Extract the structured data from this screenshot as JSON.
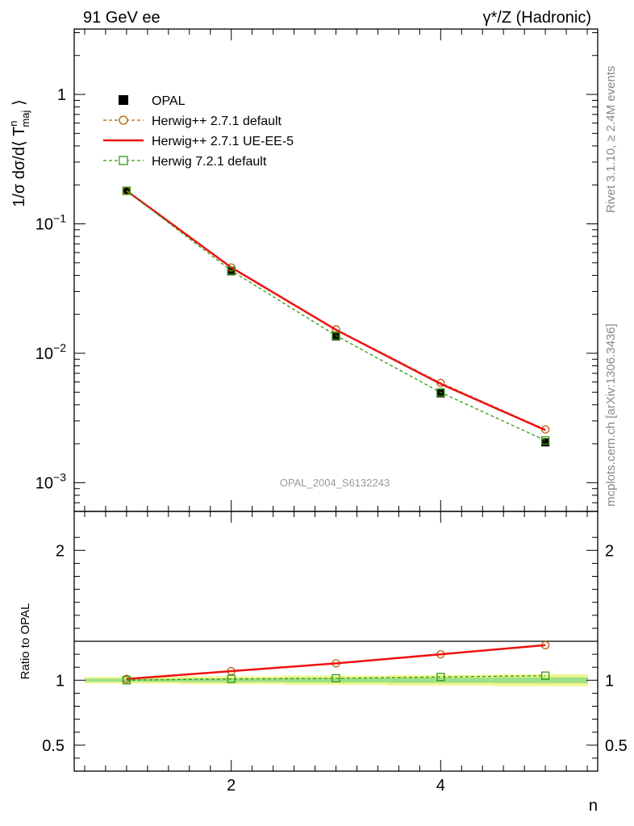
{
  "header": {
    "left_title": "91 GeV ee",
    "right_title": "γ*/Z (Hadronic)"
  },
  "side_text": {
    "rivet": "Rivet 3.1.10, ≥ 2.4M events",
    "mcplots": "mcplots.cern.ch [arXiv:1306.3436]"
  },
  "chart_data": [
    {
      "type": "line",
      "panel": "main",
      "yscale": "log",
      "title": "",
      "xlabel": "",
      "ylabel": "1/σ dσ/d⟨ T^n_maj ⟩",
      "xlim": [
        0.5,
        5.5
      ],
      "ylim": [
        0.0006,
        3.2
      ],
      "y_ticks": [
        {
          "value": 1,
          "label": "1"
        },
        {
          "value": 0.1,
          "label": "10^-1"
        },
        {
          "value": 0.01,
          "label": "10^-2"
        },
        {
          "value": 0.001,
          "label": "10^-3"
        }
      ],
      "watermark": "OPAL_2004_S6132243",
      "x": [
        1,
        2,
        3,
        4,
        5
      ],
      "series": [
        {
          "name": "OPAL",
          "style": "marker-square",
          "color": "#000000",
          "values": [
            0.18,
            0.043,
            0.0135,
            0.0049,
            0.00205
          ]
        },
        {
          "name": "Herwig++ 2.7.1 default",
          "style": "dashed-circle",
          "color": "#b35a00",
          "values": [
            0.18,
            0.046,
            0.0153,
            0.0059,
            0.00258
          ]
        },
        {
          "name": "Herwig++ 2.7.1 UE-EE-5",
          "style": "solid",
          "color": "#ee1111",
          "values": [
            0.18,
            0.046,
            0.0152,
            0.0058,
            0.00255
          ]
        },
        {
          "name": "Herwig 7.2.1 default",
          "style": "dashed-square",
          "color": "#339911",
          "values": [
            0.18,
            0.0435,
            0.0137,
            0.00498,
            0.00212
          ]
        }
      ]
    },
    {
      "type": "line",
      "panel": "ratio",
      "yscale": "linear",
      "xlabel": "n",
      "ylabel": "Ratio to OPAL",
      "xlim": [
        0.5,
        5.5
      ],
      "ylim": [
        0.3,
        2.3
      ],
      "x_ticks": [
        {
          "value": 2,
          "label": "2"
        },
        {
          "value": 4,
          "label": "4"
        }
      ],
      "y_ticks": [
        {
          "value": 2,
          "label": "2"
        },
        {
          "value": 1,
          "label": "1"
        },
        {
          "value": 0.5,
          "label": "0.5"
        }
      ],
      "x": [
        1,
        2,
        3,
        4,
        5
      ],
      "series": [
        {
          "name": "Herwig++ 2.7.1 default",
          "style": "dashed-circle",
          "color": "#b35a00",
          "values": [
            1.01,
            1.07,
            1.13,
            1.2,
            1.27
          ]
        },
        {
          "name": "Herwig++ 2.7.1 UE-EE-5",
          "style": "solid",
          "color": "#ee1111",
          "values": [
            1.01,
            1.07,
            1.13,
            1.2,
            1.27
          ]
        },
        {
          "name": "Herwig 7.2.1 default",
          "style": "dashed-square",
          "color": "#339911",
          "values": [
            1.0,
            1.01,
            1.015,
            1.025,
            1.035
          ]
        }
      ],
      "band_uncertainty": [
        {
          "x": [
            0.6,
            1.5
          ],
          "yellow": 0.025,
          "green": 0.012
        },
        {
          "x": [
            1.5,
            2.5
          ],
          "yellow": 0.03,
          "green": 0.014
        },
        {
          "x": [
            2.5,
            3.5
          ],
          "yellow": 0.035,
          "green": 0.017
        },
        {
          "x": [
            3.5,
            4.5
          ],
          "yellow": 0.04,
          "green": 0.02
        },
        {
          "x": [
            4.5,
            5.5
          ],
          "yellow": 0.045,
          "green": 0.022
        }
      ]
    }
  ]
}
